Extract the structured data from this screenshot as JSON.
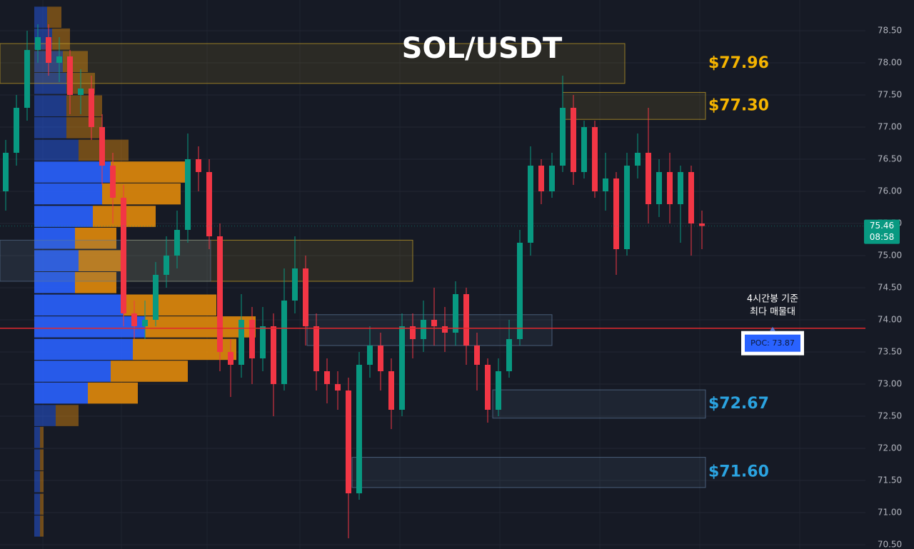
{
  "chart_data": {
    "type": "candlestick",
    "title": "SOL/USDT",
    "ylim": [
      70.433,
      78.978
    ],
    "yticks": [
      {
        "value": 70.5,
        "label": "70.50"
      },
      {
        "value": 71,
        "label": "71.00"
      },
      {
        "value": 71.5,
        "label": "71.50"
      },
      {
        "value": 72,
        "label": "72.00"
      },
      {
        "value": 72.5,
        "label": "72.50"
      },
      {
        "value": 73,
        "label": "73.00"
      },
      {
        "value": 73.5,
        "label": "73.50"
      },
      {
        "value": 74,
        "label": "74.00"
      },
      {
        "value": 74.5,
        "label": "74.50"
      },
      {
        "value": 75,
        "label": "75.00"
      },
      {
        "value": 75.5,
        "label": "75.50"
      },
      {
        "value": 76,
        "label": "76.00"
      },
      {
        "value": 76.5,
        "label": "76.50"
      },
      {
        "value": 77,
        "label": "77.00"
      },
      {
        "value": 77.5,
        "label": "77.50"
      },
      {
        "value": 78,
        "label": "78.00"
      },
      {
        "value": 78.5,
        "label": "78.50"
      }
    ],
    "grid": true,
    "up_color": "#089981",
    "down_color": "#f23645",
    "open": [
      76.0,
      76.6,
      77.3,
      78.2,
      78.4,
      78.0,
      78.1,
      77.5,
      77.6,
      77.0,
      76.4,
      75.9,
      74.1,
      73.9,
      74.0,
      74.7,
      75.0,
      75.4,
      76.5,
      76.3,
      75.3,
      73.5,
      73.3,
      74.0,
      73.4,
      73.9,
      73.0,
      74.3,
      74.8,
      73.9,
      73.2,
      73.0,
      72.9,
      71.3,
      73.3,
      73.6,
      73.2,
      72.6,
      73.9,
      73.7,
      74.0,
      73.9,
      73.8,
      74.4,
      73.6,
      73.3,
      72.6,
      73.2,
      73.7,
      75.2,
      76.4,
      76.0,
      76.4,
      77.3,
      76.3,
      77.0,
      76.0,
      76.2,
      75.1,
      76.4,
      76.6,
      75.8,
      76.3,
      75.8,
      76.3,
      75.5
    ],
    "high": [
      76.8,
      77.5,
      78.5,
      78.6,
      78.6,
      78.4,
      78.2,
      77.9,
      77.8,
      77.2,
      76.6,
      76.1,
      74.3,
      74.3,
      74.9,
      75.3,
      75.7,
      76.9,
      76.7,
      76.5,
      75.5,
      73.7,
      74.4,
      74.2,
      74.2,
      74.1,
      74.8,
      75.3,
      75.0,
      74.1,
      73.4,
      73.2,
      73.1,
      73.5,
      73.9,
      73.8,
      73.4,
      74.1,
      74.1,
      74.3,
      74.5,
      74.2,
      74.6,
      74.5,
      73.8,
      73.4,
      73.4,
      74.0,
      75.4,
      76.7,
      76.5,
      76.6,
      77.8,
      77.5,
      77.1,
      77.1,
      76.6,
      76.3,
      76.6,
      76.9,
      77.3,
      76.5,
      76.6,
      76.4,
      76.4,
      75.7
    ],
    "low": [
      75.7,
      76.4,
      77.1,
      78.0,
      77.8,
      77.7,
      77.2,
      77.2,
      76.8,
      76.1,
      75.5,
      73.9,
      73.7,
      73.7,
      73.9,
      74.5,
      74.8,
      75.2,
      76.0,
      75.1,
      73.2,
      72.8,
      73.1,
      73.0,
      73.2,
      72.5,
      72.9,
      74.1,
      73.6,
      72.9,
      72.7,
      72.6,
      70.6,
      71.2,
      73.1,
      72.9,
      72.3,
      72.5,
      73.4,
      73.5,
      73.6,
      73.5,
      73.6,
      73.3,
      72.9,
      72.4,
      72.5,
      73.1,
      73.6,
      75.0,
      75.8,
      75.9,
      76.3,
      76.1,
      76.2,
      75.9,
      75.7,
      74.7,
      75.0,
      76.2,
      75.5,
      75.6,
      75.5,
      75.2,
      75.0,
      75.1
    ],
    "close": [
      76.6,
      77.3,
      78.2,
      78.4,
      78.0,
      78.1,
      77.5,
      77.6,
      77.0,
      76.4,
      75.9,
      74.1,
      73.9,
      74.0,
      74.7,
      75.0,
      75.4,
      76.5,
      76.3,
      75.3,
      73.5,
      73.3,
      74.0,
      73.4,
      73.9,
      73.0,
      74.3,
      74.8,
      73.9,
      73.2,
      73.0,
      72.9,
      71.3,
      73.3,
      73.6,
      73.2,
      72.6,
      73.9,
      73.7,
      74.0,
      73.9,
      73.8,
      74.4,
      73.6,
      73.3,
      72.6,
      73.2,
      73.7,
      75.2,
      76.4,
      76.0,
      76.4,
      77.3,
      76.3,
      77.0,
      76.0,
      76.2,
      75.1,
      76.4,
      76.6,
      75.8,
      76.3,
      75.8,
      76.3,
      75.5,
      75.46
    ],
    "volume_profile": {
      "prices": [
        78.71,
        78.37,
        78.02,
        77.68,
        77.33,
        76.99,
        76.64,
        76.3,
        75.96,
        75.61,
        75.27,
        74.92,
        74.58,
        74.23,
        73.89,
        73.54,
        73.2,
        72.86,
        72.51,
        72.17,
        71.82,
        71.48,
        71.13,
        70.79
      ],
      "buy": [
        18,
        25,
        40,
        45,
        45,
        45,
        62,
        107,
        95,
        82,
        57,
        62,
        57,
        125,
        155,
        138,
        107,
        75,
        30,
        8,
        8,
        8,
        8,
        8
      ],
      "sell": [
        20,
        25,
        35,
        40,
        50,
        50,
        70,
        110,
        110,
        88,
        58,
        62,
        58,
        130,
        155,
        145,
        108,
        70,
        32,
        5,
        5,
        5,
        5,
        5
      ],
      "buy_color": "#2962ff",
      "sell_color": "#e08a0b",
      "value_area": [
        72.68,
        76.44
      ]
    },
    "zones": [
      {
        "top": 78.3,
        "bottom": 77.68,
        "color": "#c9a227",
        "label": {
          "value": 77.96,
          "label": "$77.96"
        }
      },
      {
        "top": 77.54,
        "bottom": 77.12,
        "color": "#c9a227",
        "label": {
          "value": 77.3,
          "label": "$77.30"
        }
      },
      {
        "top": 75.24,
        "bottom": 74.6,
        "color": "#c9a227"
      },
      {
        "top": 74.08,
        "bottom": 73.6,
        "color": "#5d7898"
      },
      {
        "top": 72.91,
        "bottom": 72.47,
        "color": "#5d7898",
        "label": {
          "value": 72.67,
          "label": "$72.67"
        }
      },
      {
        "top": 71.86,
        "bottom": 71.39,
        "color": "#5d7898",
        "label": {
          "value": 71.6,
          "label": "$71.60"
        }
      }
    ],
    "label_colors": [
      "#f5b400",
      "#f5b400",
      null,
      null,
      "#2ba3e0",
      "#2ba3e0"
    ],
    "poc": {
      "value": 73.87,
      "label": "POC: 73.87",
      "color": "#e0282d"
    },
    "annotation": [
      "4시간봉 기준",
      "최다 매물대"
    ],
    "last_price": {
      "value": 75.46,
      "label": "75.46"
    },
    "countdown": "08:58"
  }
}
